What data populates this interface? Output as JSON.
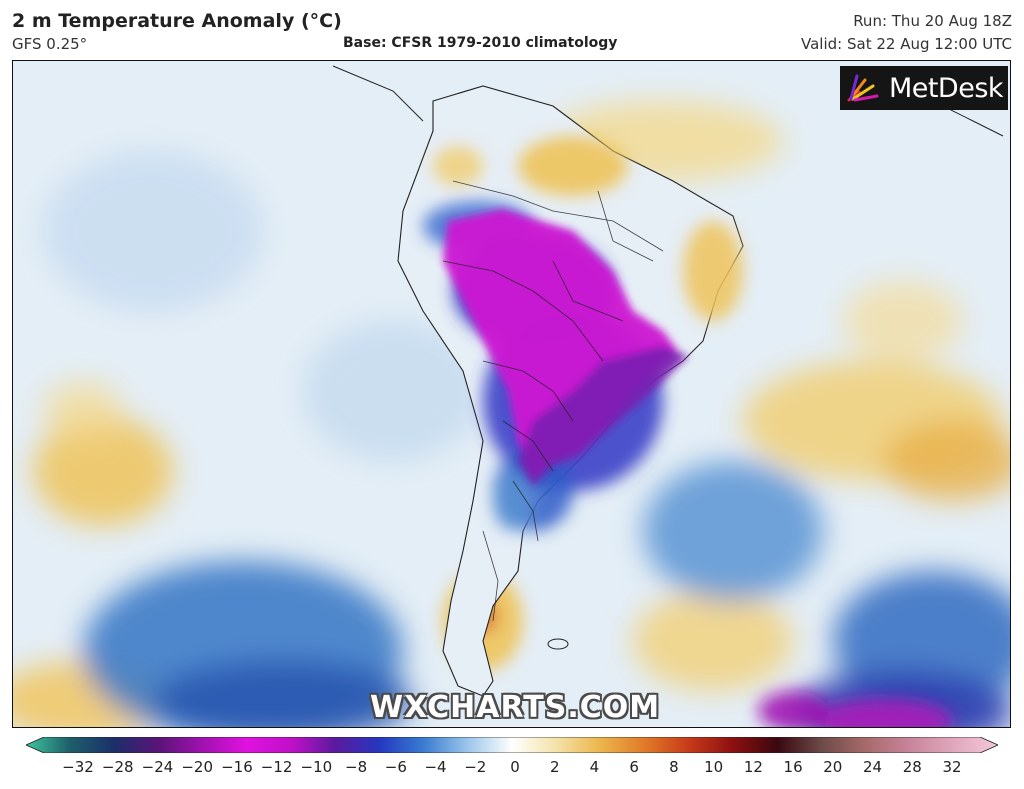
{
  "header": {
    "title": "2 m Temperature Anomaly (°C)",
    "model": "GFS 0.25°",
    "base": "Base: CFSR 1979-2010 climatology",
    "run": "Run: Thu 20 Aug 18Z",
    "valid": "Valid: Sat 22 Aug 12:00 UTC"
  },
  "brand": {
    "label": "MetDesk",
    "icon": "sunburst-logo-icon"
  },
  "watermark": {
    "text": "WXCHARTS.COM"
  },
  "colorbar": {
    "ticks": [
      "−32",
      "−28",
      "−24",
      "−20",
      "−16",
      "−12",
      "−10",
      "−8",
      "−6",
      "−4",
      "−2",
      "0",
      "2",
      "4",
      "6",
      "8",
      "10",
      "12",
      "16",
      "20",
      "24",
      "28",
      "32"
    ],
    "stops": [
      "#3fc6a0",
      "#1d5e6a",
      "#1c2f6a",
      "#5a1478",
      "#a012b0",
      "#e012e0",
      "#c010c8",
      "#5b1a9e",
      "#2438c0",
      "#3a7cd0",
      "#9cc6ea",
      "#ffffff",
      "#f4e2a8",
      "#ecb54c",
      "#e07a28",
      "#c83a1a",
      "#8c1010",
      "#3a0810",
      "#6c4a48",
      "#a66a6a",
      "#c8849a",
      "#e0a8bc",
      "#f4c8d8"
    ]
  },
  "colors": {
    "ocean": "#e2edf5",
    "cold_core": "#c81ad4",
    "deep_cold": "#7a1cb0",
    "cold": "#2e5cc8",
    "cool": "#8ab8e6",
    "warm": "#efc45c",
    "hot": "#e07a28"
  }
}
